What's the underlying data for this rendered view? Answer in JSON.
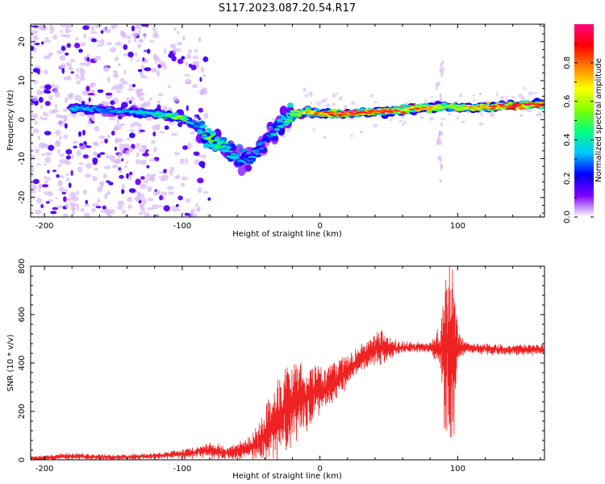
{
  "figure": {
    "title": "S117.2023.087.20.54.R17"
  },
  "chart_data": [
    {
      "type": "heatmap",
      "xlabel": "Height of straight line (km)",
      "ylabel": "Frequency (Hz)",
      "xlim": [
        -210,
        163
      ],
      "ylim": [
        -25,
        24.5
      ],
      "xticks": [
        -200,
        -100,
        0,
        100
      ],
      "yticks": [
        -20,
        -10,
        0,
        10,
        20
      ],
      "colorbar": {
        "label": "Normalized spectral amplitude",
        "range": [
          0,
          1
        ],
        "ticks": [
          0.0,
          0.2,
          0.4,
          0.6,
          0.8
        ],
        "colormap": "rainbow",
        "colors": [
          "#ffffff",
          "#7f00ff",
          "#0000ff",
          "#00c8ff",
          "#00ff80",
          "#80ff00",
          "#ffff00",
          "#ff8000",
          "#ff0000",
          "#ff0080"
        ]
      },
      "ridge_frequency_hz": {
        "x": [
          -178,
          -160,
          -140,
          -120,
          -110,
          -100,
          -90,
          -80,
          -70,
          -60,
          -52,
          -45,
          -40,
          -35,
          -30,
          -20,
          -10,
          0,
          20,
          40,
          60,
          80,
          90,
          100,
          110,
          130,
          163
        ],
        "y": [
          3,
          2.5,
          2,
          1.5,
          1,
          0.5,
          -1.5,
          -4.5,
          -7,
          -9.5,
          -10,
          -8,
          -6,
          -3.5,
          -1.5,
          1,
          2,
          1.5,
          1.5,
          2,
          2.5,
          3,
          3.5,
          3,
          3,
          3.5,
          4
        ],
        "peak_amplitude": [
          0.4,
          0.3,
          0.35,
          0.4,
          0.5,
          0.55,
          0.3,
          0.55,
          0.45,
          0.35,
          0.3,
          0.35,
          0.25,
          0.3,
          0.4,
          0.55,
          0.7,
          0.85,
          0.9,
          0.9,
          0.85,
          0.8,
          0.6,
          0.6,
          0.75,
          0.9,
          0.95
        ]
      }
    },
    {
      "type": "line",
      "xlabel": "Height of straight line (km)",
      "ylabel": "SNR (10 * v/v)",
      "xlim": [
        -210,
        163
      ],
      "ylim": [
        0,
        800
      ],
      "xticks": [
        -200,
        -100,
        0,
        100
      ],
      "yticks": [
        0,
        200,
        400,
        600,
        800
      ],
      "series": [
        {
          "color": "#ee2222",
          "x": [
            -210,
            -180,
            -150,
            -120,
            -100,
            -80,
            -70,
            -60,
            -50,
            -40,
            -30,
            -25,
            -20,
            -10,
            0,
            10,
            20,
            30,
            40,
            45,
            50,
            60,
            70,
            80,
            88,
            92,
            95,
            98,
            100,
            105,
            110,
            120,
            130,
            140,
            150,
            163
          ],
          "y": [
            5,
            15,
            10,
            15,
            25,
            40,
            30,
            35,
            50,
            100,
            180,
            220,
            250,
            260,
            290,
            320,
            370,
            420,
            455,
            470,
            460,
            465,
            465,
            465,
            460,
            450,
            450,
            440,
            470,
            465,
            460,
            460,
            455,
            455,
            455,
            455
          ],
          "noise_amplitude": [
            10,
            12,
            10,
            12,
            18,
            30,
            25,
            30,
            50,
            90,
            150,
            160,
            160,
            130,
            90,
            80,
            60,
            50,
            60,
            80,
            40,
            20,
            20,
            20,
            90,
            380,
            400,
            300,
            60,
            25,
            20,
            20,
            20,
            20,
            20,
            20
          ]
        }
      ]
    }
  ]
}
